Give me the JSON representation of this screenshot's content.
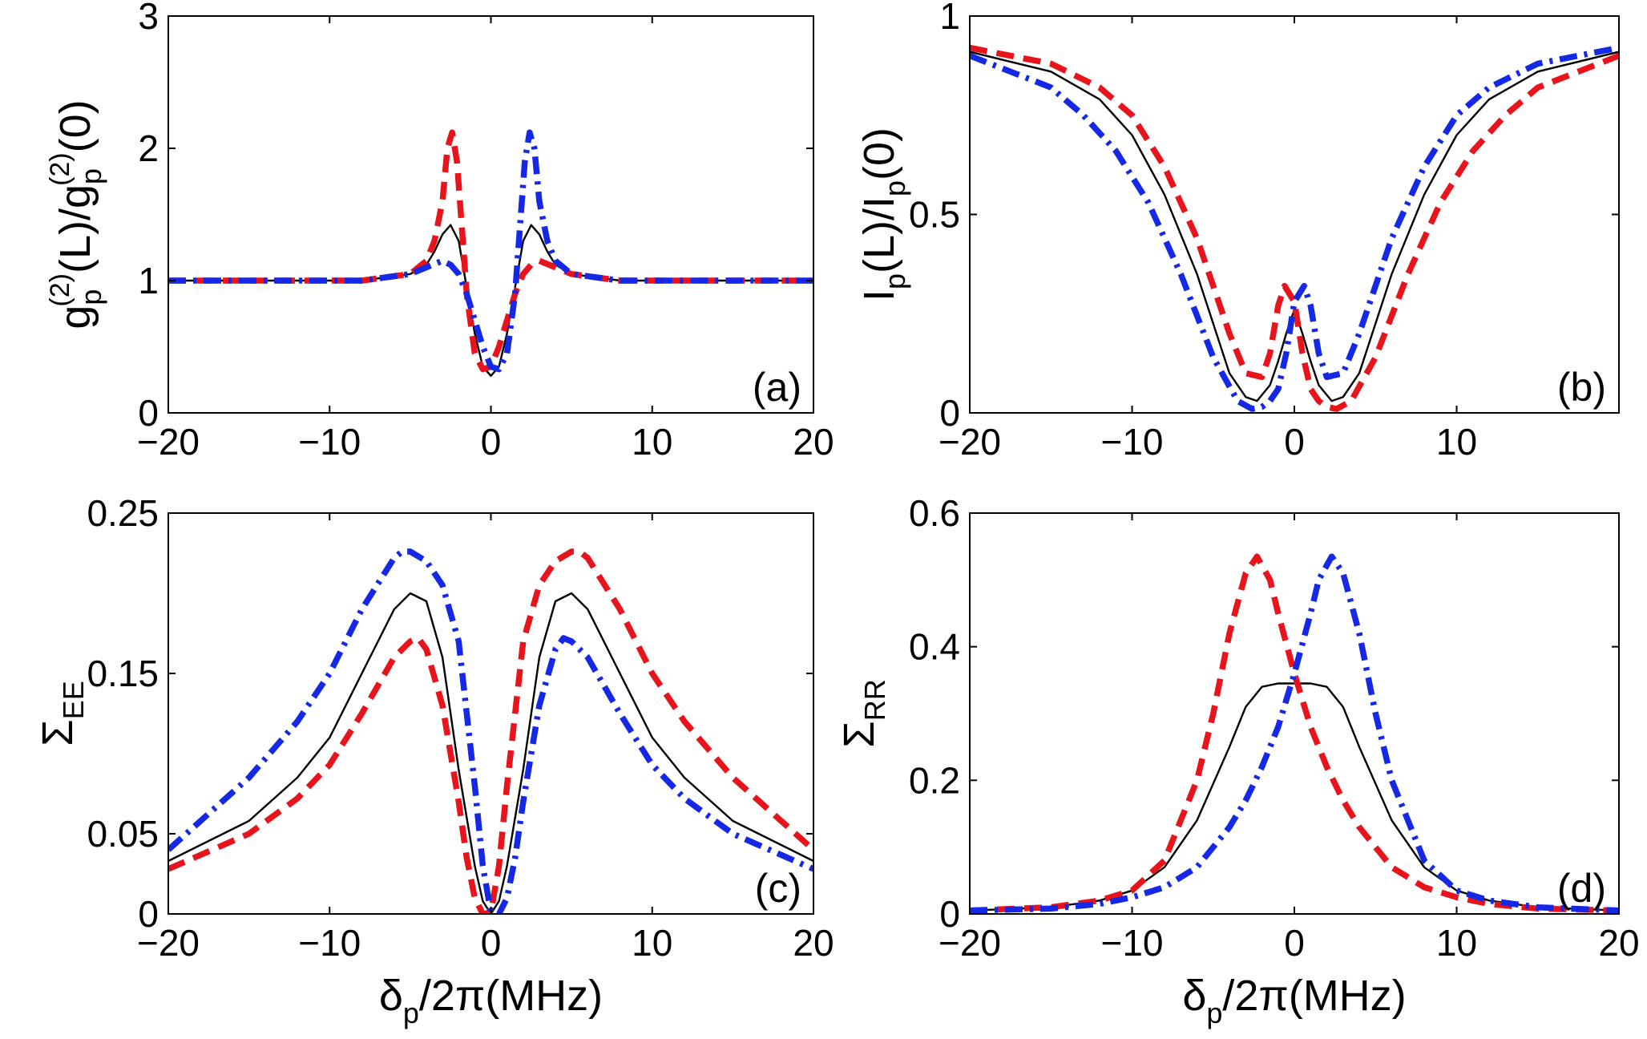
{
  "chart_data": [
    {
      "id": "a",
      "type": "line",
      "panel_label": "(a)",
      "ylabel": {
        "base": "g",
        "sub": "p",
        "sup": "(2)",
        "text": "(L)/g",
        "sub2": "p",
        "sup2": "(2)",
        "tail": "(0)"
      },
      "xlabel": null,
      "xlim": [
        -20,
        20
      ],
      "ylim": [
        0,
        3
      ],
      "xticks": [
        -20,
        -10,
        0,
        10,
        20
      ],
      "yticks": [
        0,
        1,
        2,
        3
      ],
      "xtick_labels": [
        "−20",
        "−10",
        "0",
        "10",
        "20"
      ],
      "ytick_labels": [
        "0",
        "1",
        "2",
        "3"
      ],
      "grid": false,
      "series": [
        {
          "style": "solid",
          "color": "#000000",
          "x": [
            -20,
            -8,
            -5,
            -4,
            -3.5,
            -3,
            -2.5,
            -2,
            -1.5,
            -1,
            -0.5,
            0,
            0.5,
            1,
            1.5,
            2,
            2.5,
            3,
            3.5,
            4,
            5,
            8,
            20
          ],
          "y": [
            1.0,
            1.0,
            1.05,
            1.12,
            1.22,
            1.35,
            1.42,
            1.3,
            0.95,
            0.6,
            0.35,
            0.28,
            0.35,
            0.6,
            0.95,
            1.3,
            1.42,
            1.35,
            1.22,
            1.12,
            1.05,
            1.0,
            1.0
          ]
        },
        {
          "style": "dashed",
          "color": "#e8141c",
          "x": [
            -20,
            -8,
            -5,
            -4,
            -3.5,
            -3,
            -2.7,
            -2.4,
            -2.1,
            -1.8,
            -1.5,
            -1,
            -0.5,
            0,
            0.5,
            1,
            1.5,
            2,
            2.5,
            3,
            4,
            5,
            8,
            20
          ],
          "y": [
            1.0,
            1.0,
            1.05,
            1.15,
            1.3,
            1.6,
            2.0,
            2.12,
            1.9,
            1.4,
            0.9,
            0.45,
            0.33,
            0.35,
            0.5,
            0.7,
            0.9,
            1.05,
            1.12,
            1.15,
            1.1,
            1.05,
            1.0,
            1.0
          ]
        },
        {
          "style": "dashdot",
          "color": "#1428e6",
          "x": [
            -20,
            -8,
            -5,
            -4,
            -3,
            -2.5,
            -2,
            -1.5,
            -1,
            -0.5,
            0,
            0.5,
            1,
            1.5,
            1.8,
            2.1,
            2.4,
            2.7,
            3,
            3.5,
            4,
            5,
            8,
            20
          ],
          "y": [
            1.0,
            1.0,
            1.05,
            1.1,
            1.15,
            1.12,
            1.05,
            0.9,
            0.7,
            0.5,
            0.35,
            0.33,
            0.45,
            0.9,
            1.4,
            1.9,
            2.12,
            2.0,
            1.6,
            1.3,
            1.15,
            1.05,
            1.0,
            1.0
          ]
        }
      ]
    },
    {
      "id": "b",
      "type": "line",
      "panel_label": "(b)",
      "ylabel": {
        "base": "I",
        "sub": "p",
        "text": "(L)/I",
        "sub2": "p",
        "tail": "(0)"
      },
      "xlabel": null,
      "xlim": [
        -20,
        20
      ],
      "ylim": [
        0,
        1
      ],
      "xticks": [
        -20,
        -10,
        0,
        10
      ],
      "yticks": [
        0,
        0.5,
        1
      ],
      "xtick_labels": [
        "−20",
        "−10",
        "0",
        "10"
      ],
      "ytick_labels": [
        "0",
        "0.5",
        "1"
      ],
      "grid": false,
      "series": [
        {
          "style": "solid",
          "color": "#000000",
          "x": [
            -20,
            -15,
            -12,
            -10,
            -8,
            -6,
            -4,
            -3,
            -2.3,
            -1.5,
            -1,
            -0.5,
            0,
            0.5,
            1,
            1.5,
            2.3,
            3,
            4,
            6,
            8,
            10,
            12,
            15,
            20
          ],
          "y": [
            0.91,
            0.86,
            0.79,
            0.7,
            0.55,
            0.35,
            0.1,
            0.04,
            0.03,
            0.07,
            0.13,
            0.2,
            0.26,
            0.2,
            0.13,
            0.07,
            0.03,
            0.04,
            0.1,
            0.35,
            0.55,
            0.7,
            0.79,
            0.86,
            0.91
          ]
        },
        {
          "style": "dashed",
          "color": "#e8141c",
          "x": [
            -20,
            -15,
            -12,
            -10,
            -8,
            -6,
            -4,
            -3,
            -2,
            -1.5,
            -1,
            -0.6,
            0,
            0.5,
            1,
            1.5,
            2,
            2.6,
            3.5,
            5,
            7,
            9,
            11,
            13,
            15,
            20
          ],
          "y": [
            0.92,
            0.88,
            0.82,
            0.75,
            0.62,
            0.44,
            0.2,
            0.1,
            0.09,
            0.15,
            0.27,
            0.32,
            0.28,
            0.15,
            0.06,
            0.03,
            0.015,
            0.01,
            0.03,
            0.14,
            0.35,
            0.53,
            0.66,
            0.75,
            0.82,
            0.9
          ]
        },
        {
          "style": "dashdot",
          "color": "#1428e6",
          "x": [
            -20,
            -15,
            -13,
            -11,
            -9,
            -7,
            -5,
            -3.5,
            -2.6,
            -2,
            -1.5,
            -1,
            -0.5,
            0,
            0.6,
            1,
            1.5,
            2,
            3,
            4,
            6,
            8,
            10,
            12,
            15,
            20
          ],
          "y": [
            0.9,
            0.82,
            0.75,
            0.66,
            0.53,
            0.35,
            0.14,
            0.03,
            0.01,
            0.015,
            0.03,
            0.06,
            0.15,
            0.28,
            0.32,
            0.27,
            0.15,
            0.09,
            0.1,
            0.2,
            0.44,
            0.62,
            0.75,
            0.82,
            0.88,
            0.92
          ]
        }
      ]
    },
    {
      "id": "c",
      "type": "line",
      "panel_label": "(c)",
      "ylabel": {
        "base": "Σ",
        "sub": "EE"
      },
      "xlabel": {
        "base": "δ",
        "sub": "p",
        "text": "/2π(MHz)"
      },
      "xlim": [
        -20,
        20
      ],
      "ylim": [
        0,
        0.25
      ],
      "xticks": [
        -20,
        -10,
        0,
        10,
        20
      ],
      "yticks": [
        0,
        0.05,
        0.15,
        0.25
      ],
      "xtick_labels": [
        "−20",
        "−10",
        "0",
        "10",
        "20"
      ],
      "ytick_labels": [
        "0",
        "0.05",
        "0.15",
        "0.25"
      ],
      "grid": false,
      "series": [
        {
          "style": "solid",
          "color": "#000000",
          "x": [
            -20,
            -15,
            -12,
            -10,
            -8,
            -6,
            -5,
            -4,
            -3,
            -2,
            -1,
            -0.5,
            0,
            0.5,
            1,
            2,
            3,
            4,
            5,
            6,
            8,
            10,
            12,
            15,
            20
          ],
          "y": [
            0.033,
            0.058,
            0.085,
            0.11,
            0.15,
            0.19,
            0.2,
            0.195,
            0.16,
            0.09,
            0.03,
            0.008,
            0.0,
            0.008,
            0.03,
            0.09,
            0.16,
            0.195,
            0.2,
            0.19,
            0.15,
            0.11,
            0.085,
            0.058,
            0.033
          ]
        },
        {
          "style": "dashed",
          "color": "#e8141c",
          "x": [
            -20,
            -15,
            -12,
            -10,
            -8,
            -6,
            -5,
            -4.5,
            -4,
            -3,
            -2,
            -1.5,
            -1,
            -0.5,
            0,
            0.5,
            1,
            2,
            3,
            4,
            5,
            5.5,
            6,
            8,
            10,
            12,
            15,
            20
          ],
          "y": [
            0.028,
            0.05,
            0.072,
            0.093,
            0.125,
            0.16,
            0.17,
            0.172,
            0.165,
            0.13,
            0.07,
            0.035,
            0.01,
            0.0,
            0.001,
            0.03,
            0.08,
            0.17,
            0.205,
            0.22,
            0.226,
            0.226,
            0.222,
            0.19,
            0.15,
            0.12,
            0.085,
            0.04
          ]
        },
        {
          "style": "dashdot",
          "color": "#1428e6",
          "x": [
            -20,
            -15,
            -12,
            -10,
            -8,
            -6,
            -5.5,
            -5,
            -4,
            -3,
            -2,
            -1,
            -0.5,
            0,
            0.5,
            1,
            1.5,
            2,
            3,
            4,
            4.5,
            5,
            6,
            8,
            10,
            12,
            15,
            20
          ],
          "y": [
            0.04,
            0.085,
            0.12,
            0.15,
            0.19,
            0.222,
            0.226,
            0.226,
            0.22,
            0.205,
            0.17,
            0.08,
            0.03,
            0.001,
            0.0,
            0.01,
            0.035,
            0.07,
            0.13,
            0.165,
            0.172,
            0.17,
            0.16,
            0.125,
            0.093,
            0.072,
            0.05,
            0.028
          ]
        }
      ]
    },
    {
      "id": "d",
      "type": "line",
      "panel_label": "(d)",
      "ylabel": {
        "base": "Σ",
        "sub": "RR"
      },
      "xlabel": {
        "base": "δ",
        "sub": "p",
        "text": "/2π(MHz)"
      },
      "xlim": [
        -20,
        20
      ],
      "ylim": [
        0,
        0.6
      ],
      "xticks": [
        -20,
        -10,
        0,
        10,
        20
      ],
      "yticks": [
        0,
        0.2,
        0.4,
        0.6
      ],
      "xtick_labels": [
        "−20",
        "−10",
        "0",
        "10",
        "20"
      ],
      "ytick_labels": [
        "0",
        "0.2",
        "0.4",
        "0.6"
      ],
      "grid": false,
      "series": [
        {
          "style": "solid",
          "color": "#000000",
          "x": [
            -20,
            -15,
            -12,
            -10,
            -8,
            -6,
            -4,
            -3,
            -2,
            -1,
            0,
            1,
            2,
            3,
            4,
            6,
            8,
            10,
            12,
            15,
            20
          ],
          "y": [
            0.005,
            0.01,
            0.02,
            0.035,
            0.07,
            0.14,
            0.25,
            0.31,
            0.34,
            0.345,
            0.345,
            0.345,
            0.34,
            0.31,
            0.25,
            0.14,
            0.07,
            0.035,
            0.02,
            0.01,
            0.005
          ]
        },
        {
          "style": "dashed",
          "color": "#e8141c",
          "x": [
            -20,
            -15,
            -12,
            -10,
            -8,
            -6,
            -5,
            -4,
            -3,
            -2.3,
            -1.5,
            -1,
            0,
            1,
            2,
            3,
            4,
            6,
            8,
            10,
            12,
            15,
            20
          ],
          "y": [
            0.005,
            0.01,
            0.02,
            0.035,
            0.08,
            0.2,
            0.3,
            0.42,
            0.51,
            0.535,
            0.5,
            0.45,
            0.36,
            0.28,
            0.22,
            0.17,
            0.13,
            0.07,
            0.04,
            0.025,
            0.015,
            0.008,
            0.005
          ]
        },
        {
          "style": "dashdot",
          "color": "#1428e6",
          "x": [
            -20,
            -15,
            -12,
            -10,
            -8,
            -6,
            -4,
            -3,
            -2,
            -1,
            0,
            1,
            1.5,
            2.3,
            3,
            4,
            5,
            6,
            8,
            10,
            12,
            15,
            20
          ],
          "y": [
            0.005,
            0.008,
            0.015,
            0.025,
            0.04,
            0.07,
            0.13,
            0.17,
            0.22,
            0.28,
            0.36,
            0.45,
            0.5,
            0.535,
            0.51,
            0.42,
            0.3,
            0.2,
            0.08,
            0.035,
            0.02,
            0.01,
            0.005
          ]
        }
      ]
    }
  ]
}
